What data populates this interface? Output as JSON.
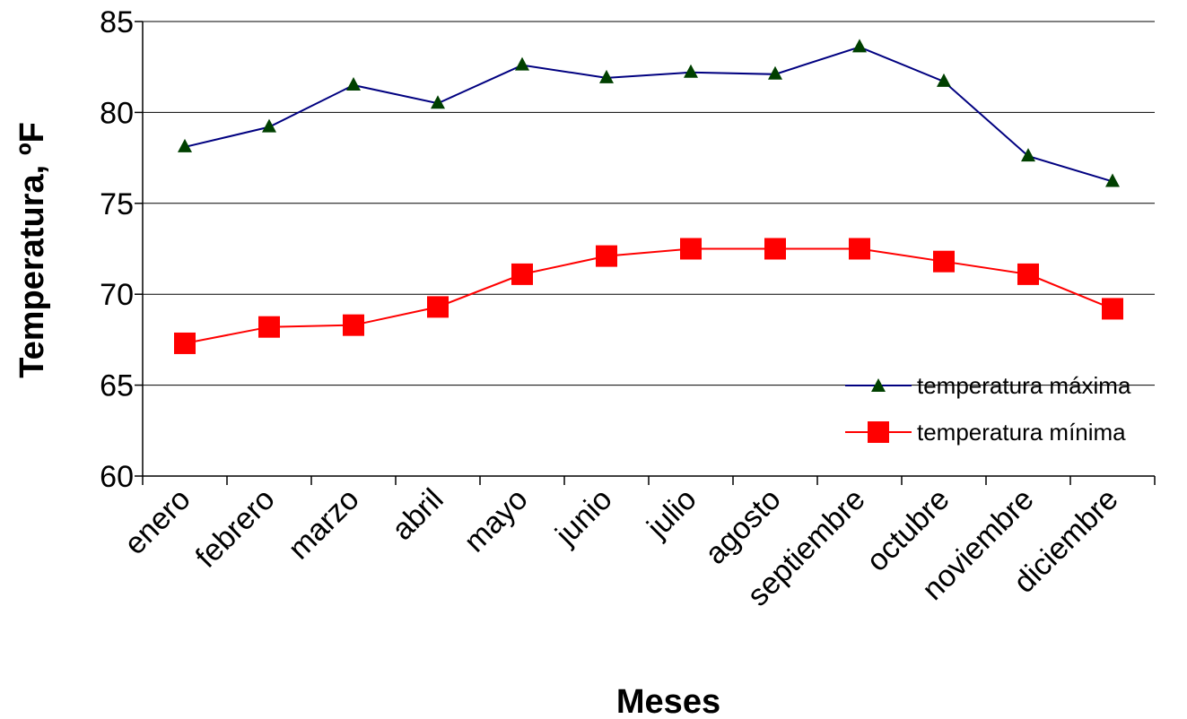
{
  "chart_data": {
    "type": "line",
    "title": "",
    "xlabel": "Meses",
    "ylabel": "Temperatura, ºF",
    "ylim": [
      60,
      85
    ],
    "yticks": [
      60,
      65,
      70,
      75,
      80,
      85
    ],
    "grid": true,
    "legend_position": "bottom-right",
    "categories": [
      "enero",
      "febrero",
      "marzo",
      "abril",
      "mayo",
      "junio",
      "julio",
      "agosto",
      "septiembre",
      "octubre",
      "noviembre",
      "diciembre"
    ],
    "series": [
      {
        "name": "temperatura máxima",
        "color": "#000080",
        "marker": "triangle",
        "marker_color": "#004000",
        "values": [
          78.1,
          79.2,
          81.5,
          80.5,
          82.6,
          81.9,
          82.2,
          82.1,
          83.6,
          81.7,
          77.6,
          76.2
        ]
      },
      {
        "name": "temperatura mínima",
        "color": "#ff0000",
        "marker": "square",
        "marker_color": "#ff0000",
        "values": [
          67.3,
          68.2,
          68.3,
          69.3,
          71.1,
          72.1,
          72.5,
          72.5,
          72.5,
          71.8,
          71.1,
          69.2
        ]
      }
    ]
  }
}
